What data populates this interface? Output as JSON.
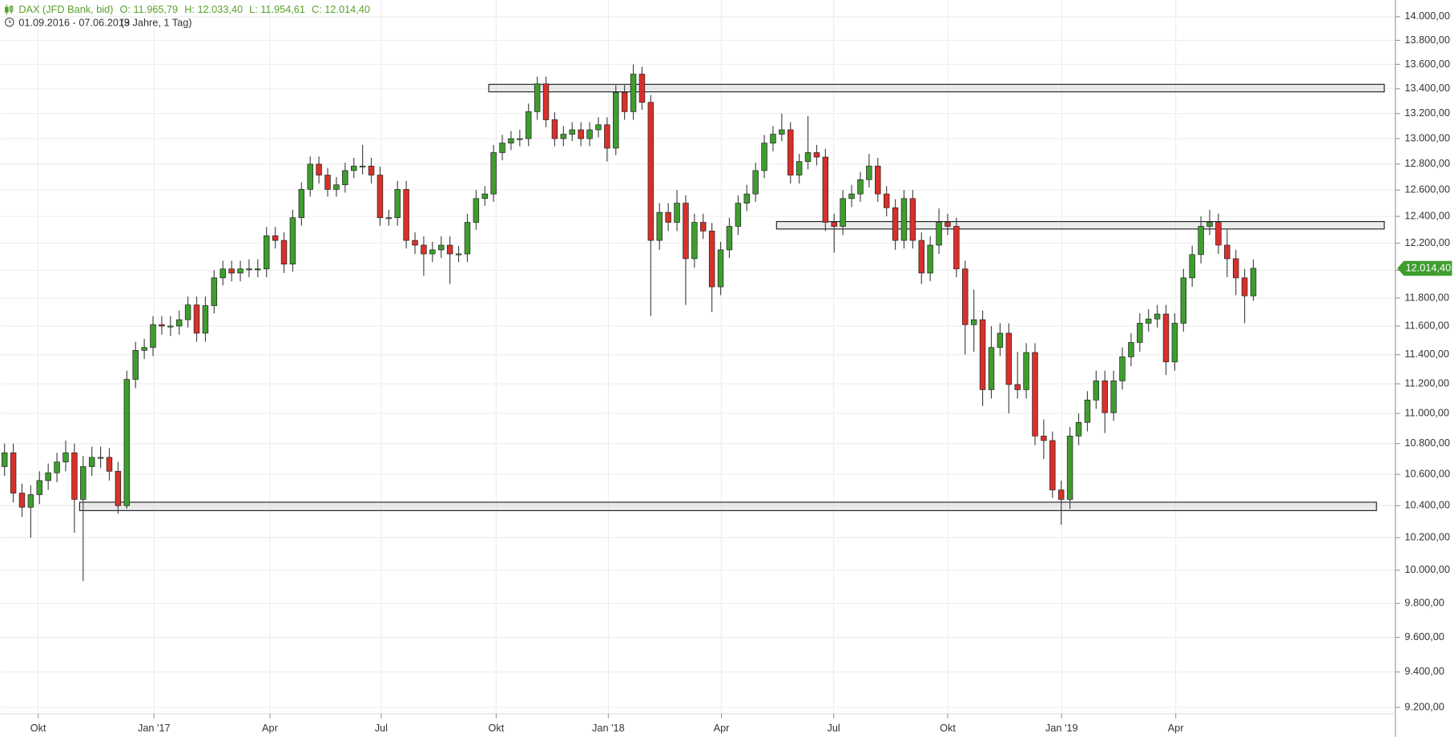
{
  "chart_data": {
    "type": "candlestick",
    "title": "DAX (JFD Bank, bid)",
    "ohlc_text": [
      "O: 11.965,79",
      "H: 12.033,40",
      "L: 11.954,61",
      "C: 12.014,40"
    ],
    "range": "01.09.2016 - 07.06.2019",
    "period": "(3 Jahre, 1 Tag)",
    "log_scale": true,
    "grid": true,
    "up_color": "#3f9d2f",
    "down_color": "#d8302a",
    "categories": [
      null,
      null,
      null,
      null,
      null,
      null,
      null,
      null,
      null,
      null,
      null,
      null,
      null,
      null,
      null,
      null,
      null,
      null,
      null,
      null,
      null,
      null,
      null,
      null,
      null,
      null,
      null,
      null,
      null,
      null,
      null,
      null,
      null,
      null,
      null,
      null,
      null,
      null,
      null,
      null,
      null,
      null,
      null,
      null,
      null,
      null,
      null,
      null,
      null,
      null,
      null,
      null,
      null,
      null,
      null,
      null,
      null,
      null,
      null,
      null,
      null,
      null,
      null,
      null,
      null,
      null,
      null,
      null,
      null,
      null,
      null,
      null,
      null,
      null,
      null,
      null,
      null,
      null,
      null,
      null,
      null,
      null,
      null,
      null,
      null,
      null,
      null,
      null,
      null,
      null,
      null,
      null,
      null,
      null,
      null,
      null,
      null,
      null,
      null,
      null,
      null,
      null,
      null,
      null,
      null,
      null,
      null,
      null,
      null,
      null,
      null,
      null,
      null,
      null,
      null,
      null,
      null,
      null,
      null,
      null,
      null,
      null,
      null,
      null,
      null,
      null,
      null,
      null,
      null,
      null,
      null,
      null,
      null,
      null,
      null,
      null,
      null,
      null,
      null,
      null,
      null,
      null,
      null,
      null
    ],
    "open": [
      10650,
      10740,
      10480,
      10390,
      10470,
      10560,
      10610,
      10680,
      10740,
      10440,
      10650,
      10710,
      10710,
      10620,
      10400,
      11230,
      11430,
      11450,
      11610,
      11600,
      11600,
      11645,
      11750,
      11550,
      11745,
      11945,
      12010,
      11980,
      12010,
      12010,
      12010,
      12255,
      12220,
      12045,
      12390,
      12605,
      12800,
      12715,
      12605,
      12640,
      12750,
      12785,
      12785,
      12715,
      12390,
      12390,
      12605,
      12220,
      12185,
      12120,
      12150,
      12185,
      12120,
      12120,
      12355,
      12535,
      12570,
      12890,
      12965,
      13000,
      13000,
      13215,
      13440,
      13150,
      13000,
      13035,
      13070,
      13000,
      13070,
      13110,
      12925,
      13370,
      13215,
      13520,
      13290,
      12220,
      12430,
      12355,
      12500,
      12085,
      12355,
      12290,
      11880,
      12150,
      12325,
      12500,
      12570,
      12750,
      12965,
      13035,
      13070,
      12715,
      12820,
      12890,
      12855,
      12355,
      12325,
      12535,
      12570,
      12680,
      12785,
      12570,
      12465,
      12220,
      12535,
      12220,
      11980,
      12185,
      12355,
      12325,
      12010,
      11610,
      11645,
      11160,
      11450,
      11550,
      11195,
      11160,
      11415,
      10850,
      10820,
      10500,
      10440,
      10850,
      10940,
      11090,
      11220,
      11005,
      11220,
      11385,
      11485,
      11620,
      11650,
      11685,
      11350,
      11620,
      11945,
      12115,
      12325,
      12355,
      12185,
      12085,
      11945,
      11815
    ],
    "high": [
      10800,
      10800,
      10540,
      10530,
      10620,
      10670,
      10740,
      10820,
      10800,
      10720,
      10780,
      10780,
      10770,
      10680,
      11290,
      11490,
      11510,
      11670,
      11670,
      11670,
      11710,
      11810,
      11810,
      11810,
      12000,
      12070,
      12070,
      12070,
      12080,
      12080,
      12320,
      12320,
      12280,
      12450,
      12660,
      12860,
      12860,
      12770,
      12700,
      12810,
      12850,
      12950,
      12850,
      12780,
      12450,
      12670,
      12670,
      12280,
      12250,
      12210,
      12250,
      12250,
      12180,
      12420,
      12600,
      12630,
      12950,
      13030,
      13060,
      13070,
      13280,
      13500,
      13500,
      13210,
      13100,
      13130,
      13130,
      13130,
      13170,
      13170,
      13430,
      13430,
      13600,
      13580,
      13350,
      12500,
      12500,
      12600,
      12560,
      12420,
      12420,
      12350,
      12210,
      12390,
      12560,
      12640,
      12810,
      13030,
      13100,
      13200,
      13130,
      12880,
      13180,
      12950,
      12920,
      12420,
      12600,
      12640,
      12740,
      12880,
      12850,
      12630,
      12530,
      12600,
      12600,
      12280,
      12250,
      12460,
      12420,
      12390,
      12070,
      11860,
      11710,
      11600,
      11620,
      11620,
      11420,
      11480,
      11480,
      10960,
      10880,
      10560,
      10910,
      11000,
      11150,
      11290,
      11290,
      11290,
      11450,
      11550,
      11690,
      11720,
      11750,
      11750,
      11690,
      12010,
      12180,
      12400,
      12450,
      12420,
      12300,
      12150,
      12010,
      12080
    ],
    "low": [
      10590,
      10420,
      10330,
      10200,
      10410,
      10500,
      10550,
      10620,
      10230,
      9935,
      10590,
      10640,
      10560,
      10350,
      10380,
      11170,
      11370,
      11390,
      11540,
      11530,
      11540,
      11590,
      11490,
      11490,
      11690,
      11890,
      11920,
      11920,
      11950,
      11950,
      11950,
      12160,
      11980,
      11990,
      12330,
      12550,
      12650,
      12550,
      12550,
      12580,
      12690,
      12720,
      12650,
      12330,
      12330,
      12330,
      12160,
      12120,
      11960,
      12060,
      12090,
      11900,
      12060,
      12060,
      12300,
      12480,
      12510,
      12830,
      12910,
      12940,
      12940,
      13150,
      13090,
      12940,
      12940,
      12980,
      12940,
      12940,
      13010,
      12820,
      12870,
      13150,
      13150,
      13230,
      11670,
      12150,
      12290,
      12290,
      11750,
      12020,
      12230,
      11700,
      11820,
      12090,
      12260,
      12440,
      12510,
      12690,
      12900,
      12980,
      12650,
      12650,
      12760,
      12790,
      12290,
      12130,
      12260,
      12470,
      12510,
      12620,
      12510,
      12400,
      12150,
      12160,
      12160,
      11900,
      11920,
      12120,
      12260,
      11950,
      11400,
      11420,
      11050,
      11100,
      11390,
      11000,
      11100,
      11100,
      10790,
      10700,
      10450,
      10280,
      10380,
      10790,
      10880,
      11030,
      10870,
      10950,
      11160,
      11320,
      11420,
      11560,
      11590,
      11260,
      11290,
      11560,
      11880,
      12050,
      12260,
      12120,
      11950,
      11820,
      11620,
      11780
    ],
    "close": [
      10740,
      10480,
      10390,
      10470,
      10560,
      10610,
      10680,
      10740,
      10440,
      10650,
      10710,
      10710,
      10620,
      10400,
      11230,
      11430,
      11450,
      11610,
      11600,
      11600,
      11645,
      11750,
      11550,
      11745,
      11945,
      12010,
      11980,
      12010,
      12010,
      12010,
      12255,
      12220,
      12045,
      12390,
      12605,
      12800,
      12715,
      12605,
      12640,
      12750,
      12785,
      12785,
      12715,
      12390,
      12390,
      12605,
      12220,
      12185,
      12120,
      12150,
      12185,
      12120,
      12120,
      12355,
      12535,
      12570,
      12890,
      12965,
      13000,
      13000,
      13215,
      13440,
      13150,
      13000,
      13035,
      13070,
      13000,
      13070,
      13110,
      12925,
      13370,
      13215,
      13520,
      13290,
      12220,
      12430,
      12355,
      12500,
      12085,
      12355,
      12290,
      11880,
      12150,
      12325,
      12500,
      12570,
      12750,
      12965,
      13035,
      13070,
      12715,
      12820,
      12890,
      12855,
      12355,
      12325,
      12535,
      12570,
      12680,
      12785,
      12570,
      12465,
      12220,
      12535,
      12220,
      11980,
      12185,
      12355,
      12325,
      12010,
      11610,
      11645,
      11160,
      11450,
      11550,
      11195,
      11160,
      11415,
      10850,
      10820,
      10500,
      10440,
      10850,
      10940,
      11090,
      11220,
      11005,
      11220,
      11385,
      11485,
      11620,
      11650,
      11685,
      11350,
      11620,
      11945,
      12115,
      12325,
      12355,
      12185,
      12085,
      11945,
      11815,
      12014.4
    ],
    "zones": [
      {
        "from": 13375,
        "to": 13436,
        "start": 55.45,
        "end": 158.0
      },
      {
        "from": 12305,
        "to": 12361,
        "start": 88.4,
        "end": 158.0
      },
      {
        "from": 10369,
        "to": 10422,
        "start": 8.6,
        "end": 157.1
      }
    ],
    "last_price": {
      "value": 12014.4,
      "label": "12.014,40"
    },
    "xlim": [
      -0.5,
      159.27
    ],
    "xticks": [
      {
        "value": 3.85,
        "label": "Okt"
      },
      {
        "value": 17.12,
        "label": "Jan '17"
      },
      {
        "value": 30.39,
        "label": "Apr"
      },
      {
        "value": 43.13,
        "label": "Jul"
      },
      {
        "value": 56.3,
        "label": "Okt"
      },
      {
        "value": 69.14,
        "label": "Jan '18"
      },
      {
        "value": 82.09,
        "label": "Apr"
      },
      {
        "value": 94.94,
        "label": "Jul"
      },
      {
        "value": 108.0,
        "label": "Okt"
      },
      {
        "value": 121.05,
        "label": "Jan '19"
      },
      {
        "value": 134.11,
        "label": "Apr"
      }
    ],
    "ylim": [
      9164,
      14143
    ],
    "yticks": [
      {
        "value": 14000,
        "label": "14.000,00"
      },
      {
        "value": 13800,
        "label": "13.800,00"
      },
      {
        "value": 13600,
        "label": "13.600,00"
      },
      {
        "value": 13400,
        "label": "13.400,00"
      },
      {
        "value": 13200,
        "label": "13.200,00"
      },
      {
        "value": 13000,
        "label": "13.000,00"
      },
      {
        "value": 12800,
        "label": "12.800,00"
      },
      {
        "value": 12600,
        "label": "12.600,00"
      },
      {
        "value": 12400,
        "label": "12.400,00"
      },
      {
        "value": 12200,
        "label": "12.200,00"
      },
      {
        "value": 12000,
        "label": "12.000,00"
      },
      {
        "value": 11800,
        "label": "11.800,00"
      },
      {
        "value": 11600,
        "label": "11.600,00"
      },
      {
        "value": 11400,
        "label": "11.400,00"
      },
      {
        "value": 11200,
        "label": "11.200,00"
      },
      {
        "value": 11000,
        "label": "11.000,00"
      },
      {
        "value": 10800,
        "label": "10.800,00"
      },
      {
        "value": 10600,
        "label": "10.600,00"
      },
      {
        "value": 10400,
        "label": "10.400,00"
      },
      {
        "value": 10200,
        "label": "10.200,00"
      },
      {
        "value": 10000,
        "label": "10.000,00"
      },
      {
        "value": 9800,
        "label": "9.800,00"
      },
      {
        "value": 9600,
        "label": "9.600,00"
      },
      {
        "value": 9400,
        "label": "9.400,00"
      },
      {
        "value": 9200,
        "label": "9.200,00"
      }
    ]
  }
}
